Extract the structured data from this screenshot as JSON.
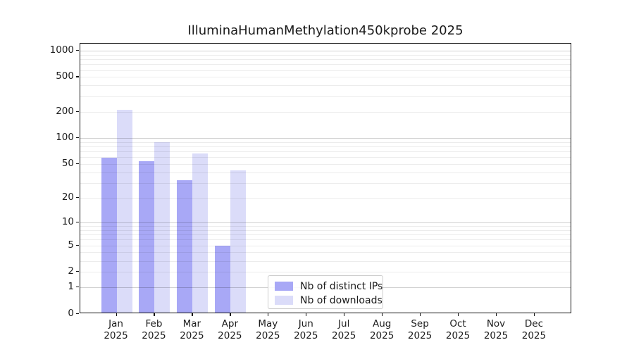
{
  "title": "IlluminaHumanMethylation450kprobe 2025",
  "chart_data": {
    "type": "bar",
    "title": "IlluminaHumanMethylation450kprobe 2025",
    "scale": "log1p",
    "categories": [
      "Jan",
      "Feb",
      "Mar",
      "Apr",
      "May",
      "Jun",
      "Jul",
      "Aug",
      "Sep",
      "Oct",
      "Nov",
      "Dec"
    ],
    "year_label": "2025",
    "series": [
      {
        "name": "Nb of distinct IPs",
        "color": "#a8a8f6",
        "values": [
          59,
          54,
          32,
          5,
          0,
          0,
          0,
          0,
          0,
          0,
          0,
          0
        ]
      },
      {
        "name": "Nb of downloads",
        "color": "#dbdcf9",
        "values": [
          210,
          90,
          66,
          42,
          0,
          0,
          0,
          0,
          0,
          0,
          0,
          0
        ]
      }
    ],
    "y_ticks": [
      0,
      1,
      2,
      5,
      10,
      20,
      50,
      100,
      200,
      500,
      1000
    ],
    "ylim": [
      0,
      1200
    ],
    "grid": true,
    "legend_position": "bottom-center",
    "colors": {
      "axis": "#111111",
      "text": "#1c1c1c",
      "grid_minor": "#ebebeb",
      "grid_major": "#cccccc"
    }
  }
}
